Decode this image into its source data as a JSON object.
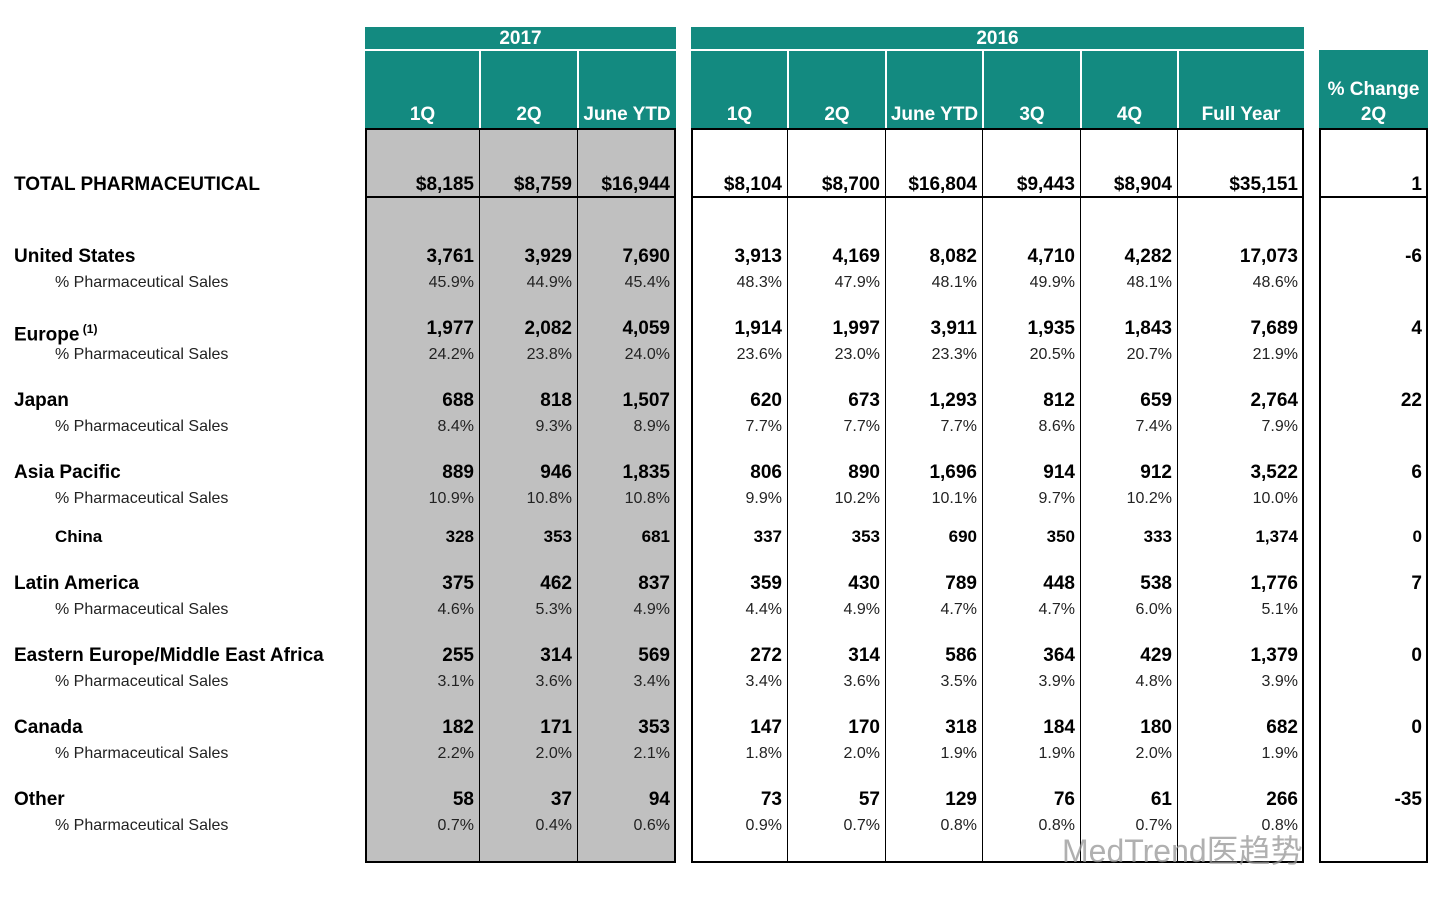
{
  "table": {
    "groups": [
      {
        "title": "2017",
        "columns": [
          "1Q",
          "2Q",
          "June YTD"
        ]
      },
      {
        "title": "2016",
        "columns": [
          "1Q",
          "2Q",
          "June YTD",
          "3Q",
          "4Q",
          "Full Year"
        ]
      },
      {
        "title": null,
        "columns": [
          [
            "% Change",
            "2Q"
          ]
        ]
      }
    ],
    "lines": [
      {
        "label": "TOTAL PHARMACEUTICAL",
        "style": "total",
        "values": [
          "$8,185",
          "$8,759",
          "$16,944",
          "$8,104",
          "$8,700",
          "$16,804",
          "$9,443",
          "$8,904",
          "$35,151",
          "1"
        ]
      },
      {
        "label": "United States",
        "style": "region",
        "values": [
          "3,761",
          "3,929",
          "7,690",
          "3,913",
          "4,169",
          "8,082",
          "4,710",
          "4,282",
          "17,073",
          "-6"
        ]
      },
      {
        "label": "% Pharmaceutical Sales",
        "style": "share",
        "values": [
          "45.9%",
          "44.9%",
          "45.4%",
          "48.3%",
          "47.9%",
          "48.1%",
          "49.9%",
          "48.1%",
          "48.6%"
        ]
      },
      {
        "label": "Europe",
        "note": "(1)",
        "style": "region",
        "values": [
          "1,977",
          "2,082",
          "4,059",
          "1,914",
          "1,997",
          "3,911",
          "1,935",
          "1,843",
          "7,689",
          "4"
        ]
      },
      {
        "label": "% Pharmaceutical Sales",
        "style": "share",
        "values": [
          "24.2%",
          "23.8%",
          "24.0%",
          "23.6%",
          "23.0%",
          "23.3%",
          "20.5%",
          "20.7%",
          "21.9%"
        ]
      },
      {
        "label": "Japan",
        "style": "region",
        "values": [
          "688",
          "818",
          "1,507",
          "620",
          "673",
          "1,293",
          "812",
          "659",
          "2,764",
          "22"
        ]
      },
      {
        "label": "% Pharmaceutical Sales",
        "style": "share",
        "values": [
          "8.4%",
          "9.3%",
          "8.9%",
          "7.7%",
          "7.7%",
          "7.7%",
          "8.6%",
          "7.4%",
          "7.9%"
        ]
      },
      {
        "label": "Asia Pacific",
        "style": "region",
        "values": [
          "889",
          "946",
          "1,835",
          "806",
          "890",
          "1,696",
          "914",
          "912",
          "3,522",
          "6"
        ]
      },
      {
        "label": "% Pharmaceutical Sales",
        "style": "share",
        "values": [
          "10.9%",
          "10.8%",
          "10.8%",
          "9.9%",
          "10.2%",
          "10.1%",
          "9.7%",
          "10.2%",
          "10.0%"
        ]
      },
      {
        "label": "China",
        "style": "sub-region",
        "values": [
          "328",
          "353",
          "681",
          "337",
          "353",
          "690",
          "350",
          "333",
          "1,374",
          "0"
        ]
      },
      {
        "label": "Latin America",
        "style": "region",
        "values": [
          "375",
          "462",
          "837",
          "359",
          "430",
          "789",
          "448",
          "538",
          "1,776",
          "7"
        ]
      },
      {
        "label": "% Pharmaceutical Sales",
        "style": "share",
        "values": [
          "4.6%",
          "5.3%",
          "4.9%",
          "4.4%",
          "4.9%",
          "4.7%",
          "4.7%",
          "6.0%",
          "5.1%"
        ]
      },
      {
        "label": "Eastern Europe/Middle East Africa",
        "style": "region",
        "values": [
          "255",
          "314",
          "569",
          "272",
          "314",
          "586",
          "364",
          "429",
          "1,379",
          "0"
        ]
      },
      {
        "label": "% Pharmaceutical Sales",
        "style": "share",
        "values": [
          "3.1%",
          "3.6%",
          "3.4%",
          "3.4%",
          "3.6%",
          "3.5%",
          "3.9%",
          "4.8%",
          "3.9%"
        ]
      },
      {
        "label": "Canada",
        "style": "region",
        "values": [
          "182",
          "171",
          "353",
          "147",
          "170",
          "318",
          "184",
          "180",
          "682",
          "0"
        ]
      },
      {
        "label": "% Pharmaceutical Sales",
        "style": "share",
        "values": [
          "2.2%",
          "2.0%",
          "2.1%",
          "1.8%",
          "2.0%",
          "1.9%",
          "1.9%",
          "2.0%",
          "1.9%"
        ]
      },
      {
        "label": "Other",
        "style": "region",
        "values": [
          "58",
          "37",
          "94",
          "73",
          "57",
          "129",
          "76",
          "61",
          "266",
          "-35"
        ]
      },
      {
        "label": "% Pharmaceutical Sales",
        "style": "share",
        "values": [
          "0.7%",
          "0.4%",
          "0.6%",
          "0.9%",
          "0.7%",
          "0.8%",
          "0.8%",
          "0.7%",
          "0.8%"
        ]
      }
    ]
  },
  "watermark": "MedTrend医趋势"
}
